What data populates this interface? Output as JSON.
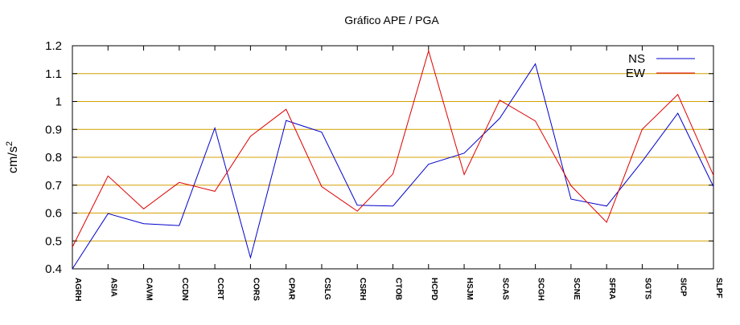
{
  "chart_data": {
    "type": "line",
    "title": "Gráfico  APE / PGA",
    "xlabel": "",
    "ylabel": "cm/s",
    "ylabel_superscript": "2",
    "ylim": [
      0.4,
      1.2
    ],
    "yticks": [
      "0.4",
      "0.5",
      "0.6",
      "0.7",
      "0.8",
      "0.9",
      "1",
      "1.1",
      "1.2"
    ],
    "grid": "horizontal",
    "grid_color": "#d4a000",
    "legend_position": "top-right",
    "categories": [
      "AGRH",
      "ASIA",
      "CAVM",
      "CCDN",
      "CCRT",
      "CORS",
      "CPAR",
      "CSLG",
      "CSRH",
      "CTOB",
      "HCPD",
      "HSJM",
      "SCAS",
      "SCGH",
      "SCNE",
      "SFRA",
      "SGTS",
      "SICP",
      "SLPF"
    ],
    "series": [
      {
        "name": "NS",
        "color": "#0000cc",
        "values": [
          0.4,
          0.598,
          0.562,
          0.555,
          0.905,
          0.44,
          0.932,
          0.89,
          0.628,
          0.625,
          0.775,
          0.815,
          0.94,
          1.135,
          0.65,
          0.625,
          0.785,
          0.958,
          0.695
        ]
      },
      {
        "name": "EW",
        "color": "#dd0000",
        "values": [
          0.478,
          0.733,
          0.615,
          0.71,
          0.678,
          0.875,
          0.972,
          0.695,
          0.607,
          0.74,
          1.182,
          0.738,
          1.005,
          0.93,
          0.698,
          0.567,
          0.9,
          1.025,
          0.735
        ]
      }
    ]
  }
}
